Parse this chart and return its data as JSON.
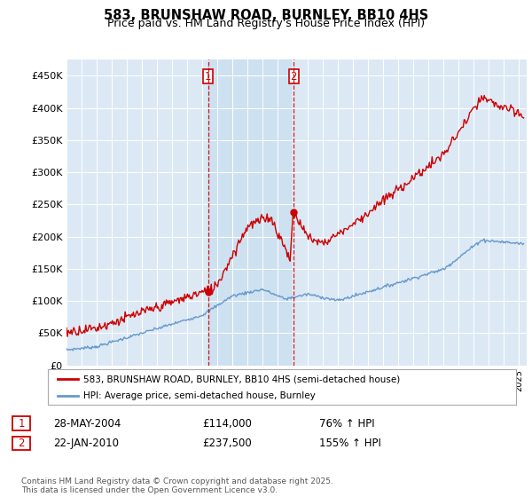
{
  "title": "583, BRUNSHAW ROAD, BURNLEY, BB10 4HS",
  "subtitle": "Price paid vs. HM Land Registry's House Price Index (HPI)",
  "background_color": "#ffffff",
  "plot_bg_color": "#dce9f5",
  "highlight_color": "#c8dff0",
  "ylim": [
    0,
    475000
  ],
  "yticks": [
    0,
    50000,
    100000,
    150000,
    200000,
    250000,
    300000,
    350000,
    400000,
    450000
  ],
  "ytick_labels": [
    "£0",
    "£50K",
    "£100K",
    "£150K",
    "£200K",
    "£250K",
    "£300K",
    "£350K",
    "£400K",
    "£450K"
  ],
  "red_color": "#cc0000",
  "blue_color": "#6699cc",
  "vline_color": "#cc0000",
  "sale1_x": 2004.38,
  "sale1_price": 114000,
  "sale1_hpi": "76%",
  "sale1_date": "28-MAY-2004",
  "sale2_x": 2010.05,
  "sale2_price": 237500,
  "sale2_hpi": "155%",
  "sale2_date": "22-JAN-2010",
  "legend_label1": "583, BRUNSHAW ROAD, BURNLEY, BB10 4HS (semi-detached house)",
  "legend_label2": "HPI: Average price, semi-detached house, Burnley",
  "footer": "Contains HM Land Registry data © Crown copyright and database right 2025.\nThis data is licensed under the Open Government Licence v3.0.",
  "xlim_start": 1995.0,
  "xlim_end": 2025.5
}
